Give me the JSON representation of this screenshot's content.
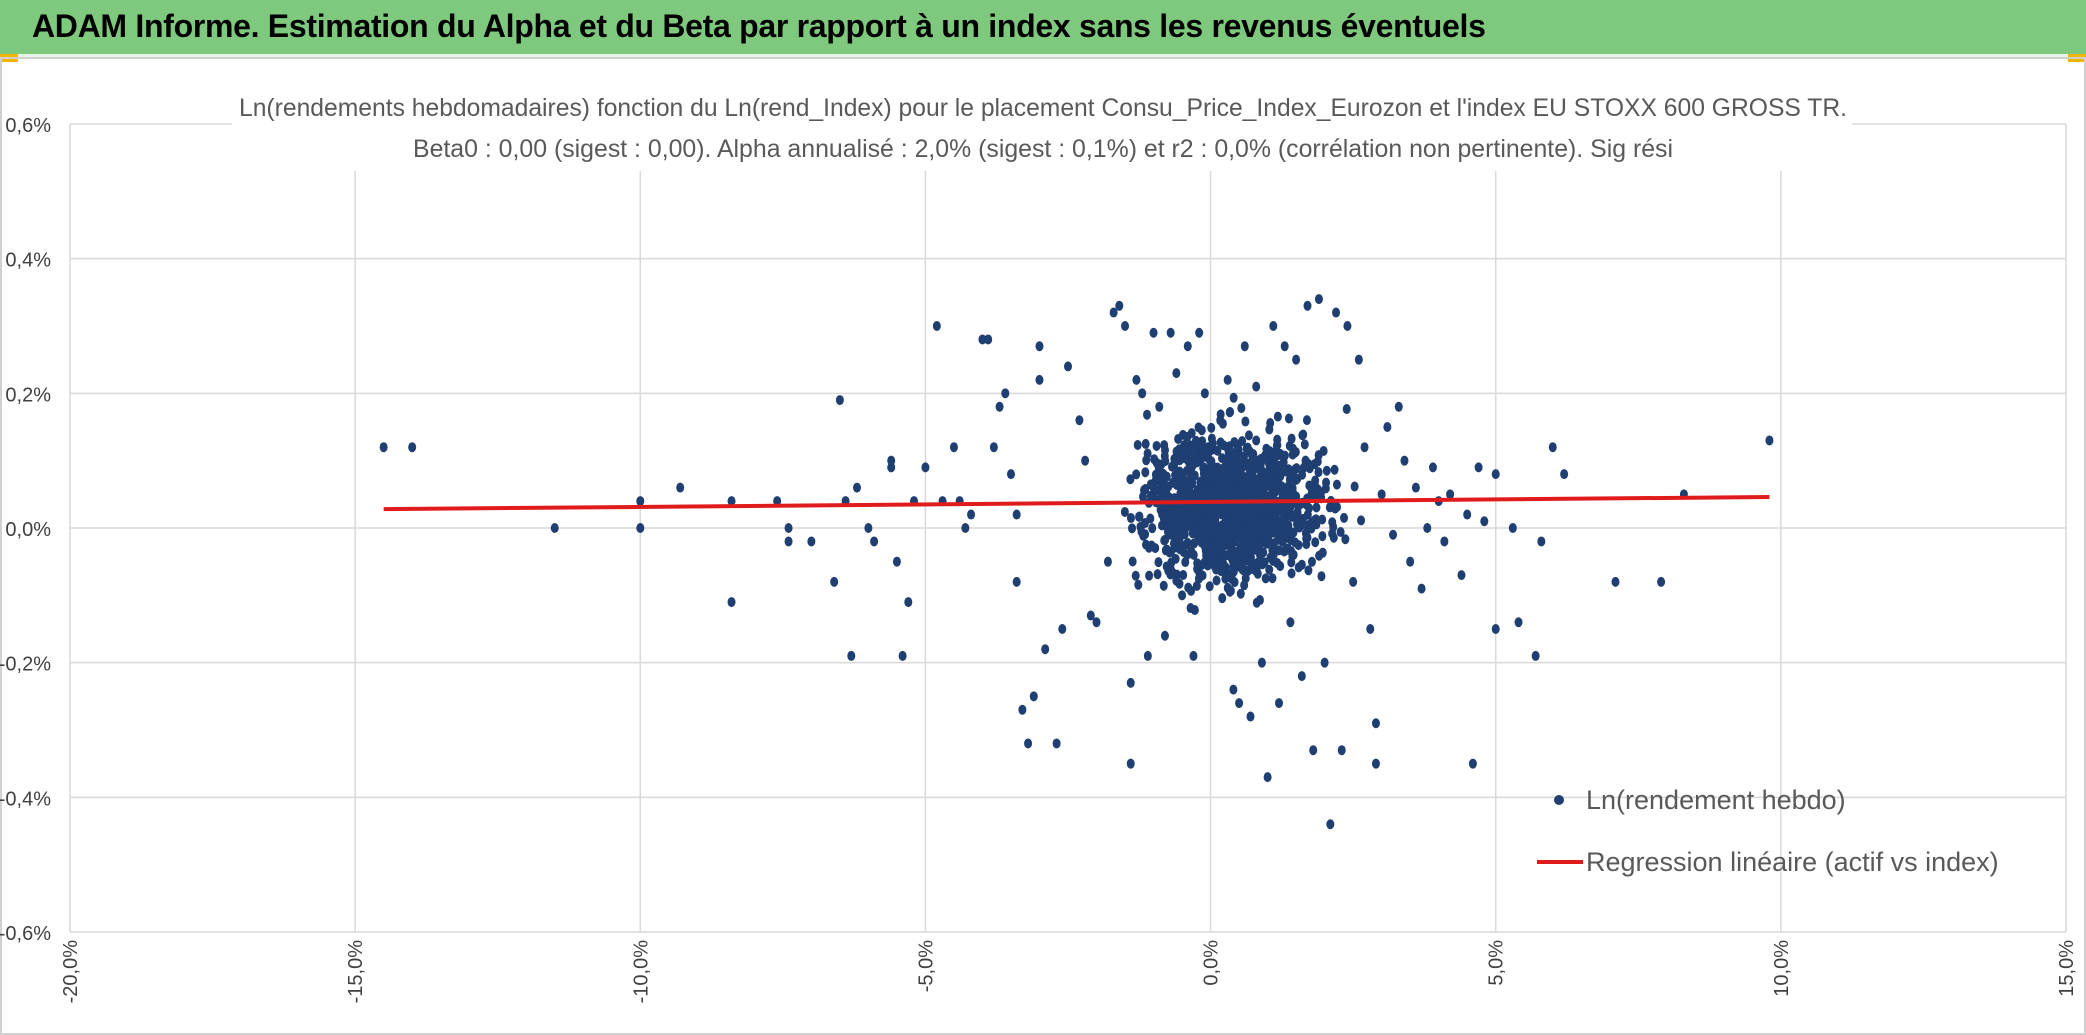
{
  "header": {
    "title": "ADAM Informe. Estimation du Alpha et du Beta par rapport à un index sans les revenus éventuels"
  },
  "colors": {
    "banner": "#7ec97e",
    "points": "#1f3f73",
    "regression": "#e01b1b",
    "grid": "#d9d9d9"
  },
  "chart_data": {
    "type": "scatter",
    "title_line1": "Ln(rendements hebdomadaires) fonction du Ln(rend_Index) pour le placement Consu_Price_Index_Eurozon et l'index EU STOXX 600 GROSS TR.",
    "title_line2": "Beta0 : 0,00 (sigest : 0,00). Alpha annualisé : 2,0% (sigest : 0,1%) et r2 : 0,0% (corrélation non pertinente). Sig rési",
    "xlim": [
      -20,
      15
    ],
    "ylim": [
      -0.6,
      0.6
    ],
    "x_ticks": [
      "-20,0%",
      "-15,0%",
      "-10,0%",
      "-5,0%",
      "0,0%",
      "5,0%",
      "10,0%",
      "15,0%"
    ],
    "x_tick_values": [
      -20,
      -15,
      -10,
      -5,
      0,
      5,
      10,
      15
    ],
    "y_ticks": [
      "0,6%",
      "0,4%",
      "0,2%",
      "0,0%",
      "-0,2%",
      "-0,4%",
      "-0,6%"
    ],
    "y_tick_values": [
      0.6,
      0.4,
      0.2,
      0.0,
      -0.2,
      -0.4,
      -0.6
    ],
    "grid": true,
    "legend_position": "bottom-right",
    "series": [
      {
        "name": "Ln(rendement hebdo)",
        "kind": "points",
        "points": [
          [
            -14.5,
            0.12
          ],
          [
            -14.0,
            0.12
          ],
          [
            -11.5,
            0.0
          ],
          [
            -10.0,
            0.0
          ],
          [
            -10.0,
            0.04
          ],
          [
            -9.3,
            0.06
          ],
          [
            -8.4,
            0.04
          ],
          [
            -8.4,
            -0.11
          ],
          [
            -7.6,
            0.04
          ],
          [
            -7.4,
            0.0
          ],
          [
            -7.4,
            -0.02
          ],
          [
            -7.0,
            -0.02
          ],
          [
            -6.5,
            0.19
          ],
          [
            -6.6,
            -0.08
          ],
          [
            -6.4,
            0.04
          ],
          [
            -6.3,
            -0.19
          ],
          [
            -6.2,
            0.06
          ],
          [
            -6.0,
            0.0
          ],
          [
            -5.9,
            -0.02
          ],
          [
            -5.6,
            0.09
          ],
          [
            -5.6,
            0.1
          ],
          [
            -5.5,
            -0.05
          ],
          [
            -5.4,
            -0.19
          ],
          [
            -5.3,
            -0.11
          ],
          [
            -5.2,
            0.04
          ],
          [
            -5.0,
            0.09
          ],
          [
            -4.8,
            0.3
          ],
          [
            -4.7,
            0.04
          ],
          [
            -4.5,
            0.12
          ],
          [
            -4.4,
            0.04
          ],
          [
            -4.3,
            0.0
          ],
          [
            -4.2,
            0.02
          ],
          [
            -4.0,
            0.28
          ],
          [
            -3.9,
            0.28
          ],
          [
            -3.8,
            0.12
          ],
          [
            -3.7,
            0.18
          ],
          [
            -3.6,
            0.2
          ],
          [
            -3.5,
            0.08
          ],
          [
            -3.4,
            0.02
          ],
          [
            -3.4,
            -0.08
          ],
          [
            -3.3,
            -0.27
          ],
          [
            -3.2,
            -0.32
          ],
          [
            -3.1,
            -0.25
          ],
          [
            -3.0,
            0.27
          ],
          [
            -3.0,
            0.22
          ],
          [
            -2.9,
            -0.18
          ],
          [
            -2.7,
            -0.32
          ],
          [
            -2.6,
            -0.15
          ],
          [
            -2.5,
            0.24
          ],
          [
            -2.3,
            0.16
          ],
          [
            -2.2,
            0.1
          ],
          [
            -2.1,
            -0.13
          ],
          [
            -2.0,
            -0.14
          ],
          [
            -1.8,
            -0.05
          ],
          [
            -1.7,
            0.32
          ],
          [
            -1.6,
            0.33
          ],
          [
            -1.5,
            0.3
          ],
          [
            -1.4,
            -0.35
          ],
          [
            -1.4,
            -0.23
          ],
          [
            -1.3,
            0.22
          ],
          [
            -1.2,
            0.2
          ],
          [
            -1.1,
            -0.19
          ],
          [
            -1.0,
            0.29
          ],
          [
            -0.9,
            0.18
          ],
          [
            -0.8,
            -0.16
          ],
          [
            -0.7,
            0.29
          ],
          [
            -0.6,
            0.23
          ],
          [
            -0.5,
            -0.1
          ],
          [
            -0.4,
            0.27
          ],
          [
            -0.3,
            -0.19
          ],
          [
            -0.2,
            0.29
          ],
          [
            -0.1,
            0.2
          ],
          [
            0.2,
            -0.05
          ],
          [
            0.3,
            0.22
          ],
          [
            0.4,
            -0.24
          ],
          [
            0.5,
            -0.26
          ],
          [
            0.6,
            0.27
          ],
          [
            0.7,
            -0.28
          ],
          [
            0.8,
            0.21
          ],
          [
            0.9,
            -0.2
          ],
          [
            1.0,
            -0.37
          ],
          [
            1.1,
            0.3
          ],
          [
            1.2,
            -0.26
          ],
          [
            1.3,
            0.27
          ],
          [
            1.4,
            -0.14
          ],
          [
            1.5,
            0.25
          ],
          [
            1.6,
            -0.22
          ],
          [
            1.7,
            0.33
          ],
          [
            1.8,
            -0.33
          ],
          [
            1.9,
            0.34
          ],
          [
            2.0,
            -0.2
          ],
          [
            2.1,
            -0.44
          ],
          [
            2.2,
            0.32
          ],
          [
            2.3,
            -0.33
          ],
          [
            2.4,
            0.3
          ],
          [
            2.5,
            -0.08
          ],
          [
            2.6,
            0.25
          ],
          [
            2.7,
            0.12
          ],
          [
            2.8,
            -0.15
          ],
          [
            2.9,
            -0.29
          ],
          [
            2.9,
            -0.35
          ],
          [
            3.0,
            0.05
          ],
          [
            3.1,
            0.15
          ],
          [
            3.2,
            -0.01
          ],
          [
            3.3,
            0.18
          ],
          [
            3.4,
            0.1
          ],
          [
            3.5,
            -0.05
          ],
          [
            3.6,
            0.06
          ],
          [
            3.7,
            -0.09
          ],
          [
            3.8,
            0.0
          ],
          [
            3.9,
            0.09
          ],
          [
            4.0,
            0.04
          ],
          [
            4.1,
            -0.02
          ],
          [
            4.2,
            0.05
          ],
          [
            4.4,
            -0.07
          ],
          [
            4.5,
            0.02
          ],
          [
            4.6,
            -0.35
          ],
          [
            4.7,
            0.09
          ],
          [
            4.8,
            0.01
          ],
          [
            5.0,
            0.08
          ],
          [
            5.0,
            -0.15
          ],
          [
            5.3,
            0.0
          ],
          [
            5.4,
            -0.14
          ],
          [
            5.7,
            -0.19
          ],
          [
            5.8,
            -0.02
          ],
          [
            6.0,
            0.12
          ],
          [
            6.2,
            0.08
          ],
          [
            7.1,
            -0.08
          ],
          [
            7.9,
            -0.08
          ],
          [
            8.3,
            0.05
          ],
          [
            9.8,
            0.13
          ]
        ]
      },
      {
        "name": "Regression linéaire (actif vs index)",
        "kind": "line",
        "points": [
          [
            -14.5,
            0.028
          ],
          [
            9.8,
            0.046
          ]
        ]
      }
    ]
  }
}
